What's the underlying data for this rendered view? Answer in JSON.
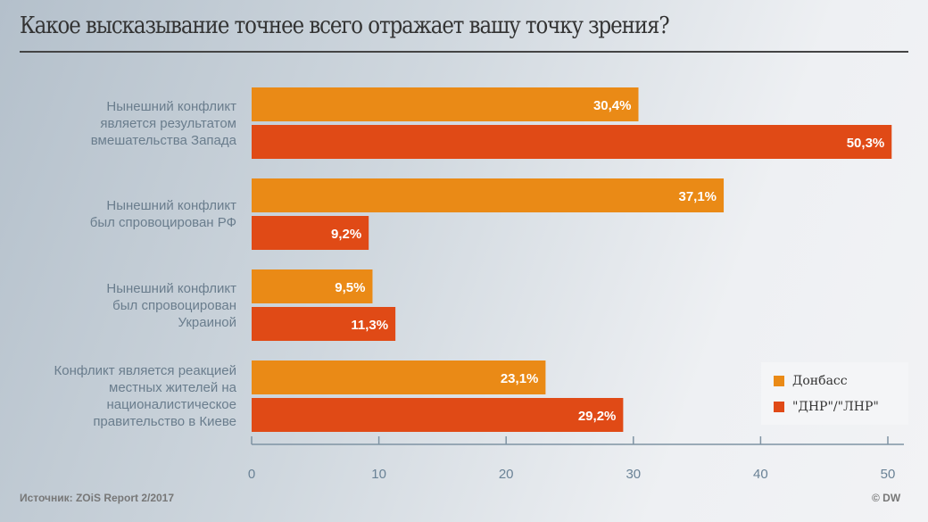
{
  "title": "Какое высказывание точнее всего отражает вашу точку зрения?",
  "source": "Источник: ZOiS Report 2/2017",
  "copyright": "© DW",
  "chart_data": {
    "type": "bar",
    "orientation": "horizontal",
    "title": "Какое высказывание точнее всего отражает вашу точку зрения?",
    "categories": [
      "Нынешний конфликт является результатом вмешательства Запада",
      "Нынешний конфликт был спровоцирован РФ",
      "Нынешний конфликт был спровоцирован Украиной",
      "Конфликт является реакцией местных жителей на националистическое правительство в Киеве"
    ],
    "category_lines": [
      [
        "Нынешний конфликт",
        "является результатом",
        "вмешательства Запада"
      ],
      [
        "Нынешний конфликт",
        "был спровоцирован РФ"
      ],
      [
        "Нынешний конфликт",
        "был спровоцирован",
        "Украиной"
      ],
      [
        "Конфликт является реакцией",
        "местных жителей на",
        "националистическое",
        "правительство в Киеве"
      ]
    ],
    "series": [
      {
        "name": "Донбасс",
        "color": "#ea8a16",
        "values": [
          30.4,
          37.1,
          9.5,
          23.1
        ],
        "labels": [
          "30,4%",
          "37,1%",
          "9,5%",
          "23,1%"
        ]
      },
      {
        "name": "\"ДНР\"/\"ЛНР\"",
        "color": "#e04a16",
        "values": [
          50.3,
          9.2,
          11.3,
          29.2
        ],
        "labels": [
          "50,3%",
          "9,2%",
          "11,3%",
          "29,2%"
        ]
      }
    ],
    "xlim": [
      0,
      50
    ],
    "xticks": [
      "0",
      "10",
      "20",
      "30",
      "40",
      "50"
    ],
    "legend": "bottom-right",
    "grid": false
  }
}
